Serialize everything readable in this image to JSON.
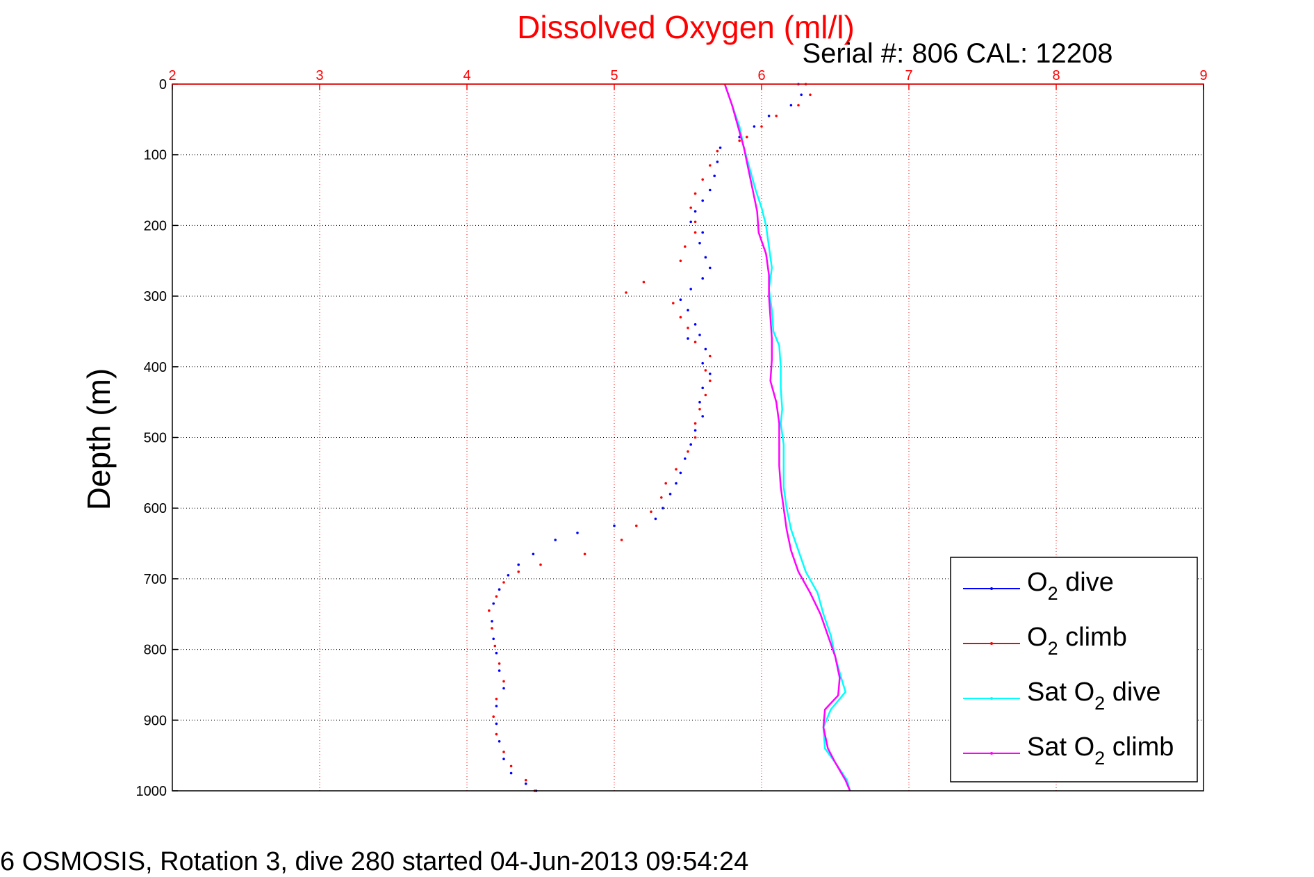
{
  "chart_data": {
    "type": "scatter",
    "title": "Dissolved Oxygen (ml/l)",
    "subtitle": "Serial #: 806  CAL: 12208",
    "ylabel": "Depth (m)",
    "caption": "6 OSMOSIS, Rotation 3, dive 280 started 04-Jun-2013 09:54:24",
    "xlim": [
      2,
      9
    ],
    "ylim": [
      0,
      1000
    ],
    "y_reversed": true,
    "x_axis_position": "top",
    "x_ticks": [
      "2",
      "3",
      "4",
      "5",
      "6",
      "7",
      "8",
      "9"
    ],
    "y_ticks": [
      "0",
      "100",
      "200",
      "300",
      "400",
      "500",
      "600",
      "700",
      "800",
      "900",
      "1000"
    ],
    "grid": true,
    "legend_position": "bottom-right",
    "series": [
      {
        "name": "O2 dive",
        "legend_main": "O",
        "legend_sub": "2",
        "legend_rest": " dive",
        "color": "#0000ff",
        "style": "dots",
        "points": [
          [
            6.25,
            0
          ],
          [
            6.27,
            15
          ],
          [
            6.2,
            30
          ],
          [
            6.05,
            45
          ],
          [
            5.95,
            60
          ],
          [
            5.85,
            75
          ],
          [
            5.72,
            90
          ],
          [
            5.7,
            110
          ],
          [
            5.68,
            130
          ],
          [
            5.65,
            150
          ],
          [
            5.6,
            165
          ],
          [
            5.55,
            180
          ],
          [
            5.52,
            195
          ],
          [
            5.6,
            210
          ],
          [
            5.58,
            225
          ],
          [
            5.62,
            245
          ],
          [
            5.65,
            260
          ],
          [
            5.6,
            275
          ],
          [
            5.52,
            290
          ],
          [
            5.45,
            305
          ],
          [
            5.5,
            320
          ],
          [
            5.55,
            340
          ],
          [
            5.58,
            355
          ],
          [
            5.5,
            360
          ],
          [
            5.62,
            375
          ],
          [
            5.6,
            395
          ],
          [
            5.65,
            410
          ],
          [
            5.6,
            430
          ],
          [
            5.58,
            450
          ],
          [
            5.6,
            470
          ],
          [
            5.55,
            490
          ],
          [
            5.52,
            510
          ],
          [
            5.48,
            530
          ],
          [
            5.45,
            550
          ],
          [
            5.42,
            565
          ],
          [
            5.38,
            580
          ],
          [
            5.33,
            600
          ],
          [
            5.28,
            615
          ],
          [
            5.0,
            625
          ],
          [
            4.75,
            635
          ],
          [
            4.6,
            645
          ],
          [
            4.45,
            665
          ],
          [
            4.35,
            680
          ],
          [
            4.28,
            695
          ],
          [
            4.22,
            715
          ],
          [
            4.18,
            735
          ],
          [
            4.17,
            760
          ],
          [
            4.18,
            785
          ],
          [
            4.2,
            805
          ],
          [
            4.22,
            830
          ],
          [
            4.25,
            855
          ],
          [
            4.2,
            880
          ],
          [
            4.2,
            905
          ],
          [
            4.22,
            930
          ],
          [
            4.25,
            955
          ],
          [
            4.3,
            975
          ],
          [
            4.4,
            990
          ],
          [
            4.47,
            1000
          ]
        ]
      },
      {
        "name": "O2 climb",
        "legend_main": "O",
        "legend_sub": "2",
        "legend_rest": " climb",
        "color": "#ff0000",
        "style": "dots",
        "points": [
          [
            6.3,
            0
          ],
          [
            6.33,
            15
          ],
          [
            6.25,
            30
          ],
          [
            6.1,
            45
          ],
          [
            6.0,
            60
          ],
          [
            5.9,
            75
          ],
          [
            5.85,
            80
          ],
          [
            5.7,
            95
          ],
          [
            5.65,
            115
          ],
          [
            5.6,
            135
          ],
          [
            5.55,
            155
          ],
          [
            5.52,
            175
          ],
          [
            5.55,
            195
          ],
          [
            5.55,
            210
          ],
          [
            5.48,
            230
          ],
          [
            5.45,
            250
          ],
          [
            5.2,
            280
          ],
          [
            5.08,
            295
          ],
          [
            5.4,
            310
          ],
          [
            5.45,
            330
          ],
          [
            5.5,
            345
          ],
          [
            5.55,
            365
          ],
          [
            5.65,
            385
          ],
          [
            5.62,
            405
          ],
          [
            5.65,
            420
          ],
          [
            5.62,
            440
          ],
          [
            5.58,
            460
          ],
          [
            5.55,
            480
          ],
          [
            5.55,
            500
          ],
          [
            5.5,
            520
          ],
          [
            5.42,
            545
          ],
          [
            5.35,
            565
          ],
          [
            5.32,
            585
          ],
          [
            5.25,
            605
          ],
          [
            5.15,
            625
          ],
          [
            5.05,
            645
          ],
          [
            4.8,
            665
          ],
          [
            4.5,
            680
          ],
          [
            4.35,
            690
          ],
          [
            4.25,
            705
          ],
          [
            4.2,
            725
          ],
          [
            4.15,
            745
          ],
          [
            4.17,
            770
          ],
          [
            4.19,
            795
          ],
          [
            4.22,
            820
          ],
          [
            4.25,
            845
          ],
          [
            4.2,
            870
          ],
          [
            4.18,
            895
          ],
          [
            4.2,
            920
          ],
          [
            4.25,
            945
          ],
          [
            4.3,
            965
          ],
          [
            4.4,
            985
          ],
          [
            4.46,
            1000
          ]
        ]
      },
      {
        "name": "Sat O2 dive",
        "legend_main": "Sat O",
        "legend_sub": "2",
        "legend_rest": " dive",
        "color": "#00ffff",
        "style": "line",
        "points": [
          [
            5.75,
            0
          ],
          [
            5.8,
            30
          ],
          [
            5.85,
            60
          ],
          [
            5.88,
            90
          ],
          [
            5.92,
            120
          ],
          [
            5.96,
            150
          ],
          [
            6.0,
            175
          ],
          [
            6.03,
            200
          ],
          [
            6.05,
            230
          ],
          [
            6.07,
            260
          ],
          [
            6.05,
            290
          ],
          [
            6.07,
            320
          ],
          [
            6.08,
            350
          ],
          [
            6.12,
            370
          ],
          [
            6.13,
            400
          ],
          [
            6.13,
            430
          ],
          [
            6.14,
            460
          ],
          [
            6.13,
            480
          ],
          [
            6.15,
            510
          ],
          [
            6.15,
            540
          ],
          [
            6.15,
            570
          ],
          [
            6.17,
            600
          ],
          [
            6.2,
            630
          ],
          [
            6.25,
            660
          ],
          [
            6.3,
            690
          ],
          [
            6.38,
            720
          ],
          [
            6.42,
            750
          ],
          [
            6.47,
            780
          ],
          [
            6.5,
            810
          ],
          [
            6.54,
            840
          ],
          [
            6.57,
            860
          ],
          [
            6.47,
            885
          ],
          [
            6.42,
            910
          ],
          [
            6.43,
            940
          ],
          [
            6.5,
            960
          ],
          [
            6.58,
            985
          ],
          [
            6.6,
            1000
          ]
        ]
      },
      {
        "name": "Sat O2 climb",
        "legend_main": "Sat O",
        "legend_sub": "2",
        "legend_rest": " climb",
        "color": "#ff00ff",
        "style": "line",
        "points": [
          [
            5.75,
            0
          ],
          [
            5.8,
            30
          ],
          [
            5.84,
            60
          ],
          [
            5.88,
            90
          ],
          [
            5.91,
            120
          ],
          [
            5.94,
            150
          ],
          [
            5.97,
            180
          ],
          [
            5.98,
            210
          ],
          [
            6.03,
            240
          ],
          [
            6.05,
            270
          ],
          [
            6.05,
            300
          ],
          [
            6.06,
            330
          ],
          [
            6.07,
            360
          ],
          [
            6.07,
            390
          ],
          [
            6.06,
            420
          ],
          [
            6.1,
            450
          ],
          [
            6.12,
            480
          ],
          [
            6.12,
            510
          ],
          [
            6.12,
            540
          ],
          [
            6.13,
            570
          ],
          [
            6.15,
            600
          ],
          [
            6.17,
            630
          ],
          [
            6.2,
            660
          ],
          [
            6.25,
            690
          ],
          [
            6.33,
            720
          ],
          [
            6.4,
            750
          ],
          [
            6.45,
            780
          ],
          [
            6.5,
            810
          ],
          [
            6.53,
            840
          ],
          [
            6.52,
            865
          ],
          [
            6.43,
            885
          ],
          [
            6.42,
            910
          ],
          [
            6.45,
            940
          ],
          [
            6.5,
            960
          ],
          [
            6.57,
            985
          ],
          [
            6.6,
            1000
          ]
        ]
      }
    ]
  }
}
